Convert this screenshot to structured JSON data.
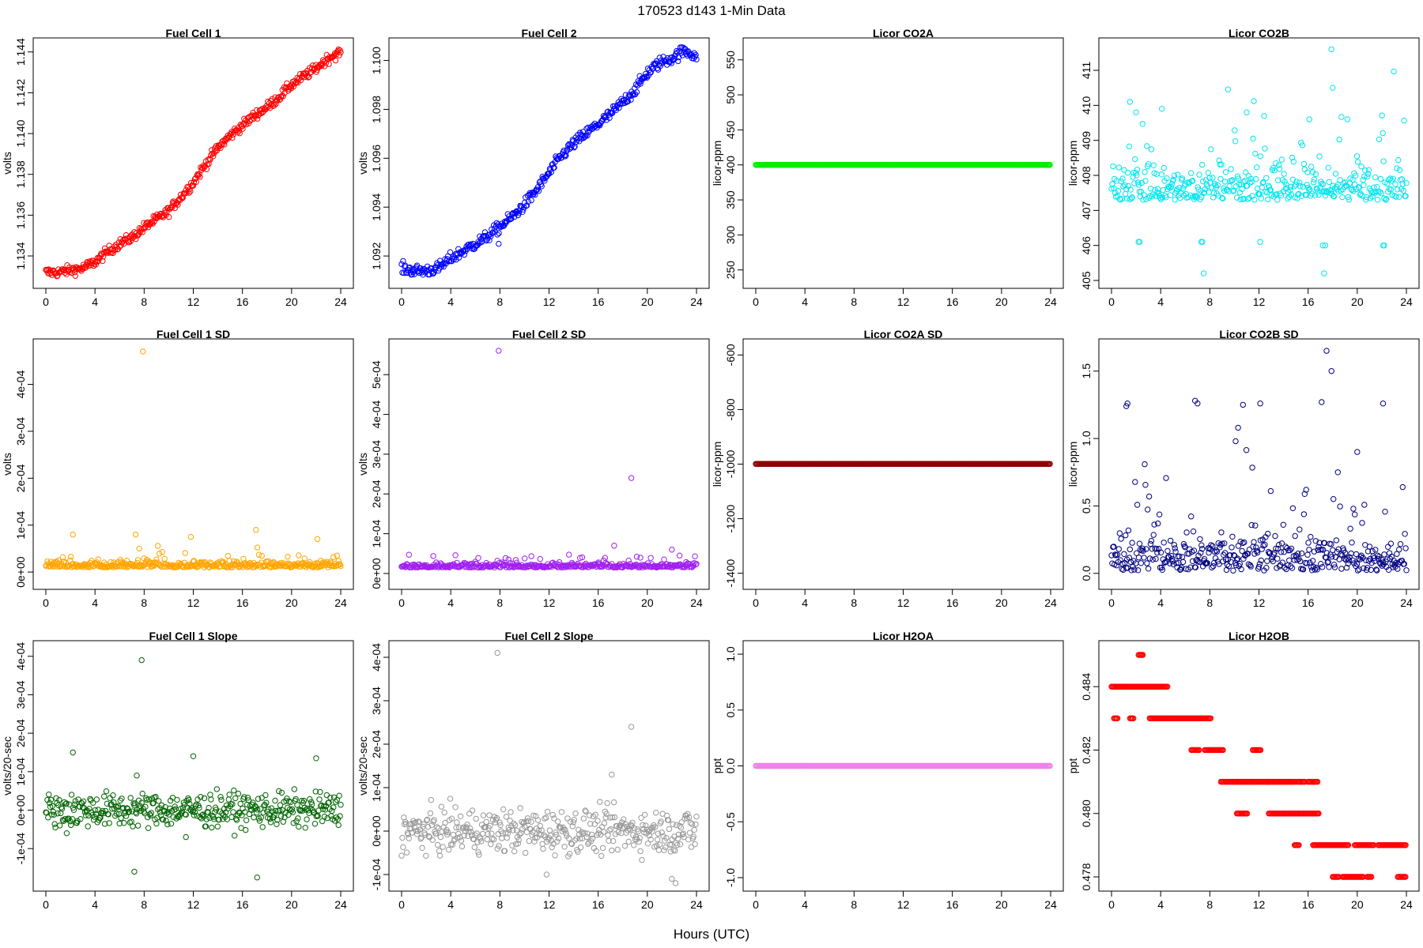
{
  "figure": {
    "title": "170523   d143   1-Min Data",
    "xlabel": "Hours (UTC)"
  },
  "chart_data": [
    {
      "type": "scatter",
      "title": "Fuel Cell 1",
      "xlabel": "",
      "ylabel": "volts",
      "xlim": [
        0,
        24
      ],
      "ylim": [
        1.1328,
        1.1443
      ],
      "xticks": [
        0,
        4,
        8,
        12,
        16,
        20,
        24
      ],
      "yticks": [
        "1.134",
        "1.136",
        "1.138",
        "1.140",
        "1.142",
        "1.144"
      ],
      "color": "#ff0000",
      "series": [
        {
          "kind": "trend",
          "x": [
            0,
            1,
            2,
            3,
            4,
            5,
            6,
            7,
            8,
            9,
            10,
            11,
            12,
            13,
            14,
            15,
            16,
            17,
            18,
            19,
            20,
            21,
            22,
            23,
            24
          ],
          "values": [
            1.1332,
            1.1332,
            1.1333,
            1.1334,
            1.1337,
            1.1342,
            1.1346,
            1.1349,
            1.1354,
            1.1358,
            1.1362,
            1.1369,
            1.1376,
            1.1385,
            1.1393,
            1.1399,
            1.1404,
            1.1409,
            1.1413,
            1.1418,
            1.1424,
            1.1428,
            1.1432,
            1.1437,
            1.144
          ],
          "noise": 0.00012
        }
      ]
    },
    {
      "type": "scatter",
      "title": "Fuel Cell 2",
      "xlabel": "",
      "ylabel": "volts",
      "xlim": [
        0,
        24
      ],
      "ylim": [
        1.091,
        1.1006
      ],
      "xticks": [
        0,
        4,
        8,
        12,
        16,
        20,
        24
      ],
      "yticks": [
        "1.092",
        "1.094",
        "1.096",
        "1.098",
        "1.100"
      ],
      "color": "#0000ff",
      "series": [
        {
          "kind": "trend",
          "x": [
            0,
            1,
            2,
            3,
            4,
            5,
            6,
            7,
            8,
            9,
            10,
            11,
            12,
            13,
            14,
            15,
            16,
            17,
            18,
            19,
            20,
            21,
            22,
            23,
            24
          ],
          "values": [
            1.0915,
            1.0914,
            1.0914,
            1.0915,
            1.0919,
            1.0922,
            1.0925,
            1.0928,
            1.0932,
            1.0936,
            1.0941,
            1.0947,
            1.0954,
            1.0961,
            1.0966,
            1.097,
            1.0974,
            1.0978,
            1.0983,
            1.0988,
            1.0995,
            1.0999,
            1.1001,
            1.1004,
            1.1002
          ],
          "noise": 0.00012
        },
        {
          "kind": "points",
          "x": [
            7.9
          ],
          "values": [
            1.0925
          ]
        }
      ]
    },
    {
      "type": "scatter",
      "title": "Licor CO2A",
      "xlabel": "",
      "ylabel": "licor-ppm",
      "xlim": [
        0,
        24
      ],
      "ylim": [
        235,
        570
      ],
      "xticks": [
        0,
        4,
        8,
        12,
        16,
        20,
        24
      ],
      "yticks": [
        "250",
        "300",
        "350",
        "400",
        "450",
        "500",
        "550"
      ],
      "color": "#00ee00",
      "series": [
        {
          "kind": "flat",
          "x": [
            0,
            24
          ],
          "values": [
            400,
            400
          ]
        }
      ]
    },
    {
      "type": "scatter",
      "title": "Licor CO2B",
      "xlabel": "",
      "ylabel": "licor-ppm",
      "xlim": [
        0,
        24
      ],
      "ylim": [
        405,
        411.7
      ],
      "xticks": [
        0,
        4,
        8,
        12,
        16,
        20,
        24
      ],
      "yticks": [
        "405",
        "406",
        "407",
        "408",
        "409",
        "410",
        "411"
      ],
      "color": "#00e5ee",
      "series": [
        {
          "kind": "noisy",
          "base": 407.3,
          "spread": 0.9,
          "skew": true
        },
        {
          "kind": "points",
          "x": [
            2.2,
            2.3,
            7.3,
            7.4,
            12.1,
            17.2,
            17.4,
            22.1,
            22.2,
            7.5,
            17.3
          ],
          "values": [
            406.1,
            406.1,
            406.1,
            406.1,
            406.1,
            406.0,
            406.0,
            406.0,
            406.0,
            405.2,
            405.2
          ]
        },
        {
          "kind": "points",
          "x": [
            1.5,
            2.0,
            4.1,
            11.0,
            16.1,
            17.9,
            18.0
          ],
          "values": [
            410.1,
            409.8,
            409.9,
            409.8,
            409.6,
            411.6,
            410.5
          ]
        }
      ]
    },
    {
      "type": "scatter",
      "title": "Fuel Cell 1 SD",
      "xlabel": "",
      "ylabel": "volts",
      "xlim": [
        0,
        24
      ],
      "ylim": [
        -2e-05,
        0.00048
      ],
      "xticks": [
        0,
        4,
        8,
        12,
        16,
        20,
        24
      ],
      "yticks": [
        "0e+00",
        "1e-04",
        "2e-04",
        "3e-04",
        "4e-04"
      ],
      "color": "#ffa500",
      "series": [
        {
          "kind": "noisy",
          "base": 1e-05,
          "spread": 1.2e-05,
          "skew": true
        },
        {
          "kind": "points",
          "x": [
            2.2,
            7.3,
            7.6,
            7.9,
            11.8,
            17.1,
            22.1
          ],
          "values": [
            8e-05,
            8e-05,
            5e-05,
            0.00047,
            7.5e-05,
            9e-05,
            7e-05
          ]
        }
      ]
    },
    {
      "type": "scatter",
      "title": "Fuel Cell 2 SD",
      "xlabel": "",
      "ylabel": "volts",
      "xlim": [
        0,
        24
      ],
      "ylim": [
        -2e-05,
        0.00057
      ],
      "xticks": [
        0,
        4,
        8,
        12,
        16,
        20,
        24
      ],
      "yticks": [
        "0e+00",
        "1e-04",
        "2e-04",
        "3e-04",
        "4e-04",
        "5e-04"
      ],
      "color": "#a020f0",
      "series": [
        {
          "kind": "noisy",
          "base": 1.5e-05,
          "spread": 1e-05,
          "skew": true
        },
        {
          "kind": "points",
          "x": [
            7.9,
            18.7,
            17.3,
            22.0
          ],
          "values": [
            0.00056,
            0.00024,
            7e-05,
            6e-05
          ]
        }
      ]
    },
    {
      "type": "scatter",
      "title": "Licor CO2A SD",
      "xlabel": "",
      "ylabel": "licor-ppm",
      "xlim": [
        0,
        24
      ],
      "ylim": [
        -1430,
        -570
      ],
      "xticks": [
        0,
        4,
        8,
        12,
        16,
        20,
        24
      ],
      "yticks": [
        "-1400",
        "-1200",
        "-1000",
        "-800",
        "-600"
      ],
      "color": "#8b0000",
      "series": [
        {
          "kind": "flat",
          "x": [
            0,
            24
          ],
          "values": [
            -999,
            -999
          ]
        }
      ]
    },
    {
      "type": "scatter",
      "title": "Licor CO2B SD",
      "xlabel": "",
      "ylabel": "licor-ppm",
      "xlim": [
        0,
        24
      ],
      "ylim": [
        -0.06,
        1.68
      ],
      "xticks": [
        0,
        4,
        8,
        12,
        16,
        20,
        24
      ],
      "yticks": [
        "0.0",
        "0.5",
        "1.0",
        "1.5"
      ],
      "color": "#000080",
      "series": [
        {
          "kind": "noisy",
          "base": 0.02,
          "spread": 0.25,
          "skew": true
        },
        {
          "kind": "points",
          "x": [
            1.2,
            1.3,
            6.8,
            7.0,
            10.3,
            10.7,
            12.1,
            17.1,
            17.5,
            17.9,
            22.1,
            10.1,
            20.0
          ],
          "values": [
            1.24,
            1.26,
            1.28,
            1.26,
            1.08,
            1.25,
            1.26,
            1.27,
            1.65,
            1.5,
            1.26,
            0.98,
            0.9
          ]
        }
      ]
    },
    {
      "type": "scatter",
      "title": "Fuel Cell 1 Slope",
      "xlabel": "",
      "ylabel": "volts/20-sec",
      "xlim": [
        0,
        24
      ],
      "ylim": [
        -0.00019,
        0.00042
      ],
      "xticks": [
        0,
        4,
        8,
        12,
        16,
        20,
        24
      ],
      "yticks": [
        "-1e-04",
        "0e+00",
        "1e-04",
        "2e-04",
        "3e-04",
        "4e-04"
      ],
      "color": "#006400",
      "series": [
        {
          "kind": "noisy",
          "base": 0.0,
          "spread": 2.2e-05,
          "skew": false
        },
        {
          "kind": "points",
          "x": [
            7.8,
            2.2,
            12.0,
            22.0,
            7.4,
            17.2,
            7.2,
            11.4,
            1.7
          ],
          "values": [
            0.00039,
            0.00015,
            0.00014,
            0.000135,
            9e-05,
            -0.000175,
            -0.00016,
            -7e-05,
            -6e-05
          ]
        }
      ]
    },
    {
      "type": "scatter",
      "title": "Fuel Cell 2 Slope",
      "xlabel": "",
      "ylabel": "volts/20-sec",
      "xlim": [
        0,
        24
      ],
      "ylim": [
        -0.00012,
        0.00042
      ],
      "xticks": [
        0,
        4,
        8,
        12,
        16,
        20,
        24
      ],
      "yticks": [
        "-1e-04",
        "0e+00",
        "1e-04",
        "2e-04",
        "3e-04",
        "4e-04"
      ],
      "color": "#999999",
      "series": [
        {
          "kind": "noisy",
          "base": 0.0,
          "spread": 2.5e-05,
          "skew": false
        },
        {
          "kind": "points",
          "x": [
            7.8,
            18.7,
            17.1,
            22.0,
            22.3,
            11.8
          ],
          "values": [
            0.00041,
            0.00024,
            0.00013,
            -0.00011,
            -0.00012,
            -0.0001
          ]
        }
      ]
    },
    {
      "type": "scatter",
      "title": "Licor H2OA",
      "xlabel": "",
      "ylabel": "ppt",
      "xlim": [
        0,
        24
      ],
      "ylim": [
        -1.05,
        1.05
      ],
      "xticks": [
        0,
        4,
        8,
        12,
        16,
        20,
        24
      ],
      "yticks": [
        "-1.0",
        "-0.5",
        "0.0",
        "0.5",
        "1.0"
      ],
      "color": "#ee82ee",
      "series": [
        {
          "kind": "flat",
          "x": [
            0,
            24
          ],
          "values": [
            0,
            0
          ]
        }
      ]
    },
    {
      "type": "scatter",
      "title": "Licor H2OB",
      "xlabel": "",
      "ylabel": "ppt",
      "xlim": [
        0,
        24
      ],
      "ylim": [
        0.4778,
        0.4852
      ],
      "xticks": [
        0,
        4,
        8,
        12,
        16,
        20,
        24
      ],
      "yticks": [
        "0.478",
        "0.480",
        "0.482",
        "0.484"
      ],
      "color": "#ff0000",
      "series": [
        {
          "kind": "segments",
          "segs": [
            [
              0,
              4.6,
              0.484
            ],
            [
              2.2,
              2.6,
              0.485
            ],
            [
              0.2,
              0.5,
              0.483
            ],
            [
              1.5,
              1.8,
              0.483
            ],
            [
              3.1,
              8.1,
              0.483
            ],
            [
              6.5,
              7.2,
              0.482
            ],
            [
              7.6,
              9.1,
              0.482
            ],
            [
              11.5,
              12.2,
              0.482
            ],
            [
              8.9,
              12.8,
              0.481
            ],
            [
              12.7,
              15.0,
              0.481
            ],
            [
              15.1,
              15.8,
              0.481
            ],
            [
              16.0,
              16.8,
              0.481
            ],
            [
              10.2,
              11.1,
              0.48
            ],
            [
              12.8,
              16.9,
              0.48
            ],
            [
              14.9,
              15.3,
              0.479
            ],
            [
              16.4,
              19.3,
              0.479
            ],
            [
              19.8,
              21.4,
              0.479
            ],
            [
              21.7,
              24.0,
              0.479
            ],
            [
              18.0,
              18.5,
              0.478
            ],
            [
              18.8,
              20.5,
              0.478
            ],
            [
              20.8,
              21.2,
              0.478
            ],
            [
              23.3,
              24.0,
              0.478
            ]
          ]
        }
      ]
    }
  ]
}
